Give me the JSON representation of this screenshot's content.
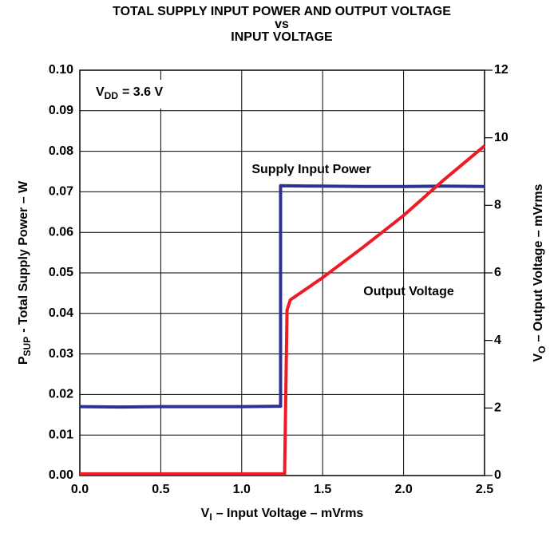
{
  "chart_data": {
    "type": "line",
    "title_lines": [
      "TOTAL SUPPLY INPUT POWER AND OUTPUT VOLTAGE",
      "vs",
      "INPUT VOLTAGE"
    ],
    "xlabel": {
      "symbol": "V",
      "subscript": "I",
      "text": "– Input Voltage – mVrms"
    },
    "ylabel": {
      "symbol": "P",
      "subscript": "SUP",
      "text": "- Total Supply Power – W"
    },
    "y2label": {
      "symbol": "V",
      "subscript": "O",
      "text": "– Output Voltage – mVrms"
    },
    "annotation": {
      "symbol": "V",
      "subscript": "DD",
      "text": "= 3.6 V"
    },
    "xlim": [
      0,
      2.5
    ],
    "xticks": [
      {
        "value": 0,
        "label": "0.0"
      },
      {
        "value": 0.5,
        "label": "0.5"
      },
      {
        "value": 1,
        "label": "1.0"
      },
      {
        "value": 1.5,
        "label": "1.5"
      },
      {
        "value": 2,
        "label": "2.0"
      },
      {
        "value": 2.5,
        "label": "2.5"
      }
    ],
    "ylim": [
      0,
      0.1
    ],
    "yticks": [
      {
        "value": 0,
        "label": "0.00"
      },
      {
        "value": 0.01,
        "label": "0.01"
      },
      {
        "value": 0.02,
        "label": "0.02"
      },
      {
        "value": 0.03,
        "label": "0.03"
      },
      {
        "value": 0.04,
        "label": "0.04"
      },
      {
        "value": 0.05,
        "label": "0.05"
      },
      {
        "value": 0.06,
        "label": "0.06"
      },
      {
        "value": 0.07,
        "label": "0.07"
      },
      {
        "value": 0.08,
        "label": "0.08"
      },
      {
        "value": 0.09,
        "label": "0.09"
      },
      {
        "value": 0.1,
        "label": "0.10"
      }
    ],
    "y2lim": [
      0,
      12
    ],
    "y2ticks": [
      0,
      2,
      4,
      6,
      8,
      10,
      12
    ],
    "grid": true,
    "series": [
      {
        "name": "Supply Input Power",
        "color": "#2e3192",
        "x": [
          0,
          0.25,
          0.5,
          0.75,
          1.0,
          1.24,
          1.24,
          1.5,
          1.75,
          2.0,
          2.25,
          2.5
        ],
        "values": [
          0.017,
          0.0169,
          0.017,
          0.017,
          0.017,
          0.0171,
          0.0715,
          0.0714,
          0.0713,
          0.0713,
          0.0714,
          0.0713
        ]
      },
      {
        "name": "Output Voltage",
        "color": "#ed1c24",
        "axis": "y2",
        "x": [
          0,
          0.5,
          1.0,
          1.265,
          1.28,
          1.3,
          1.5,
          1.75,
          2.0,
          2.25,
          2.5
        ],
        "values": [
          0.05,
          0.05,
          0.05,
          0.05,
          4.9,
          5.2,
          5.86,
          6.76,
          7.7,
          8.76,
          9.76
        ]
      }
    ]
  }
}
